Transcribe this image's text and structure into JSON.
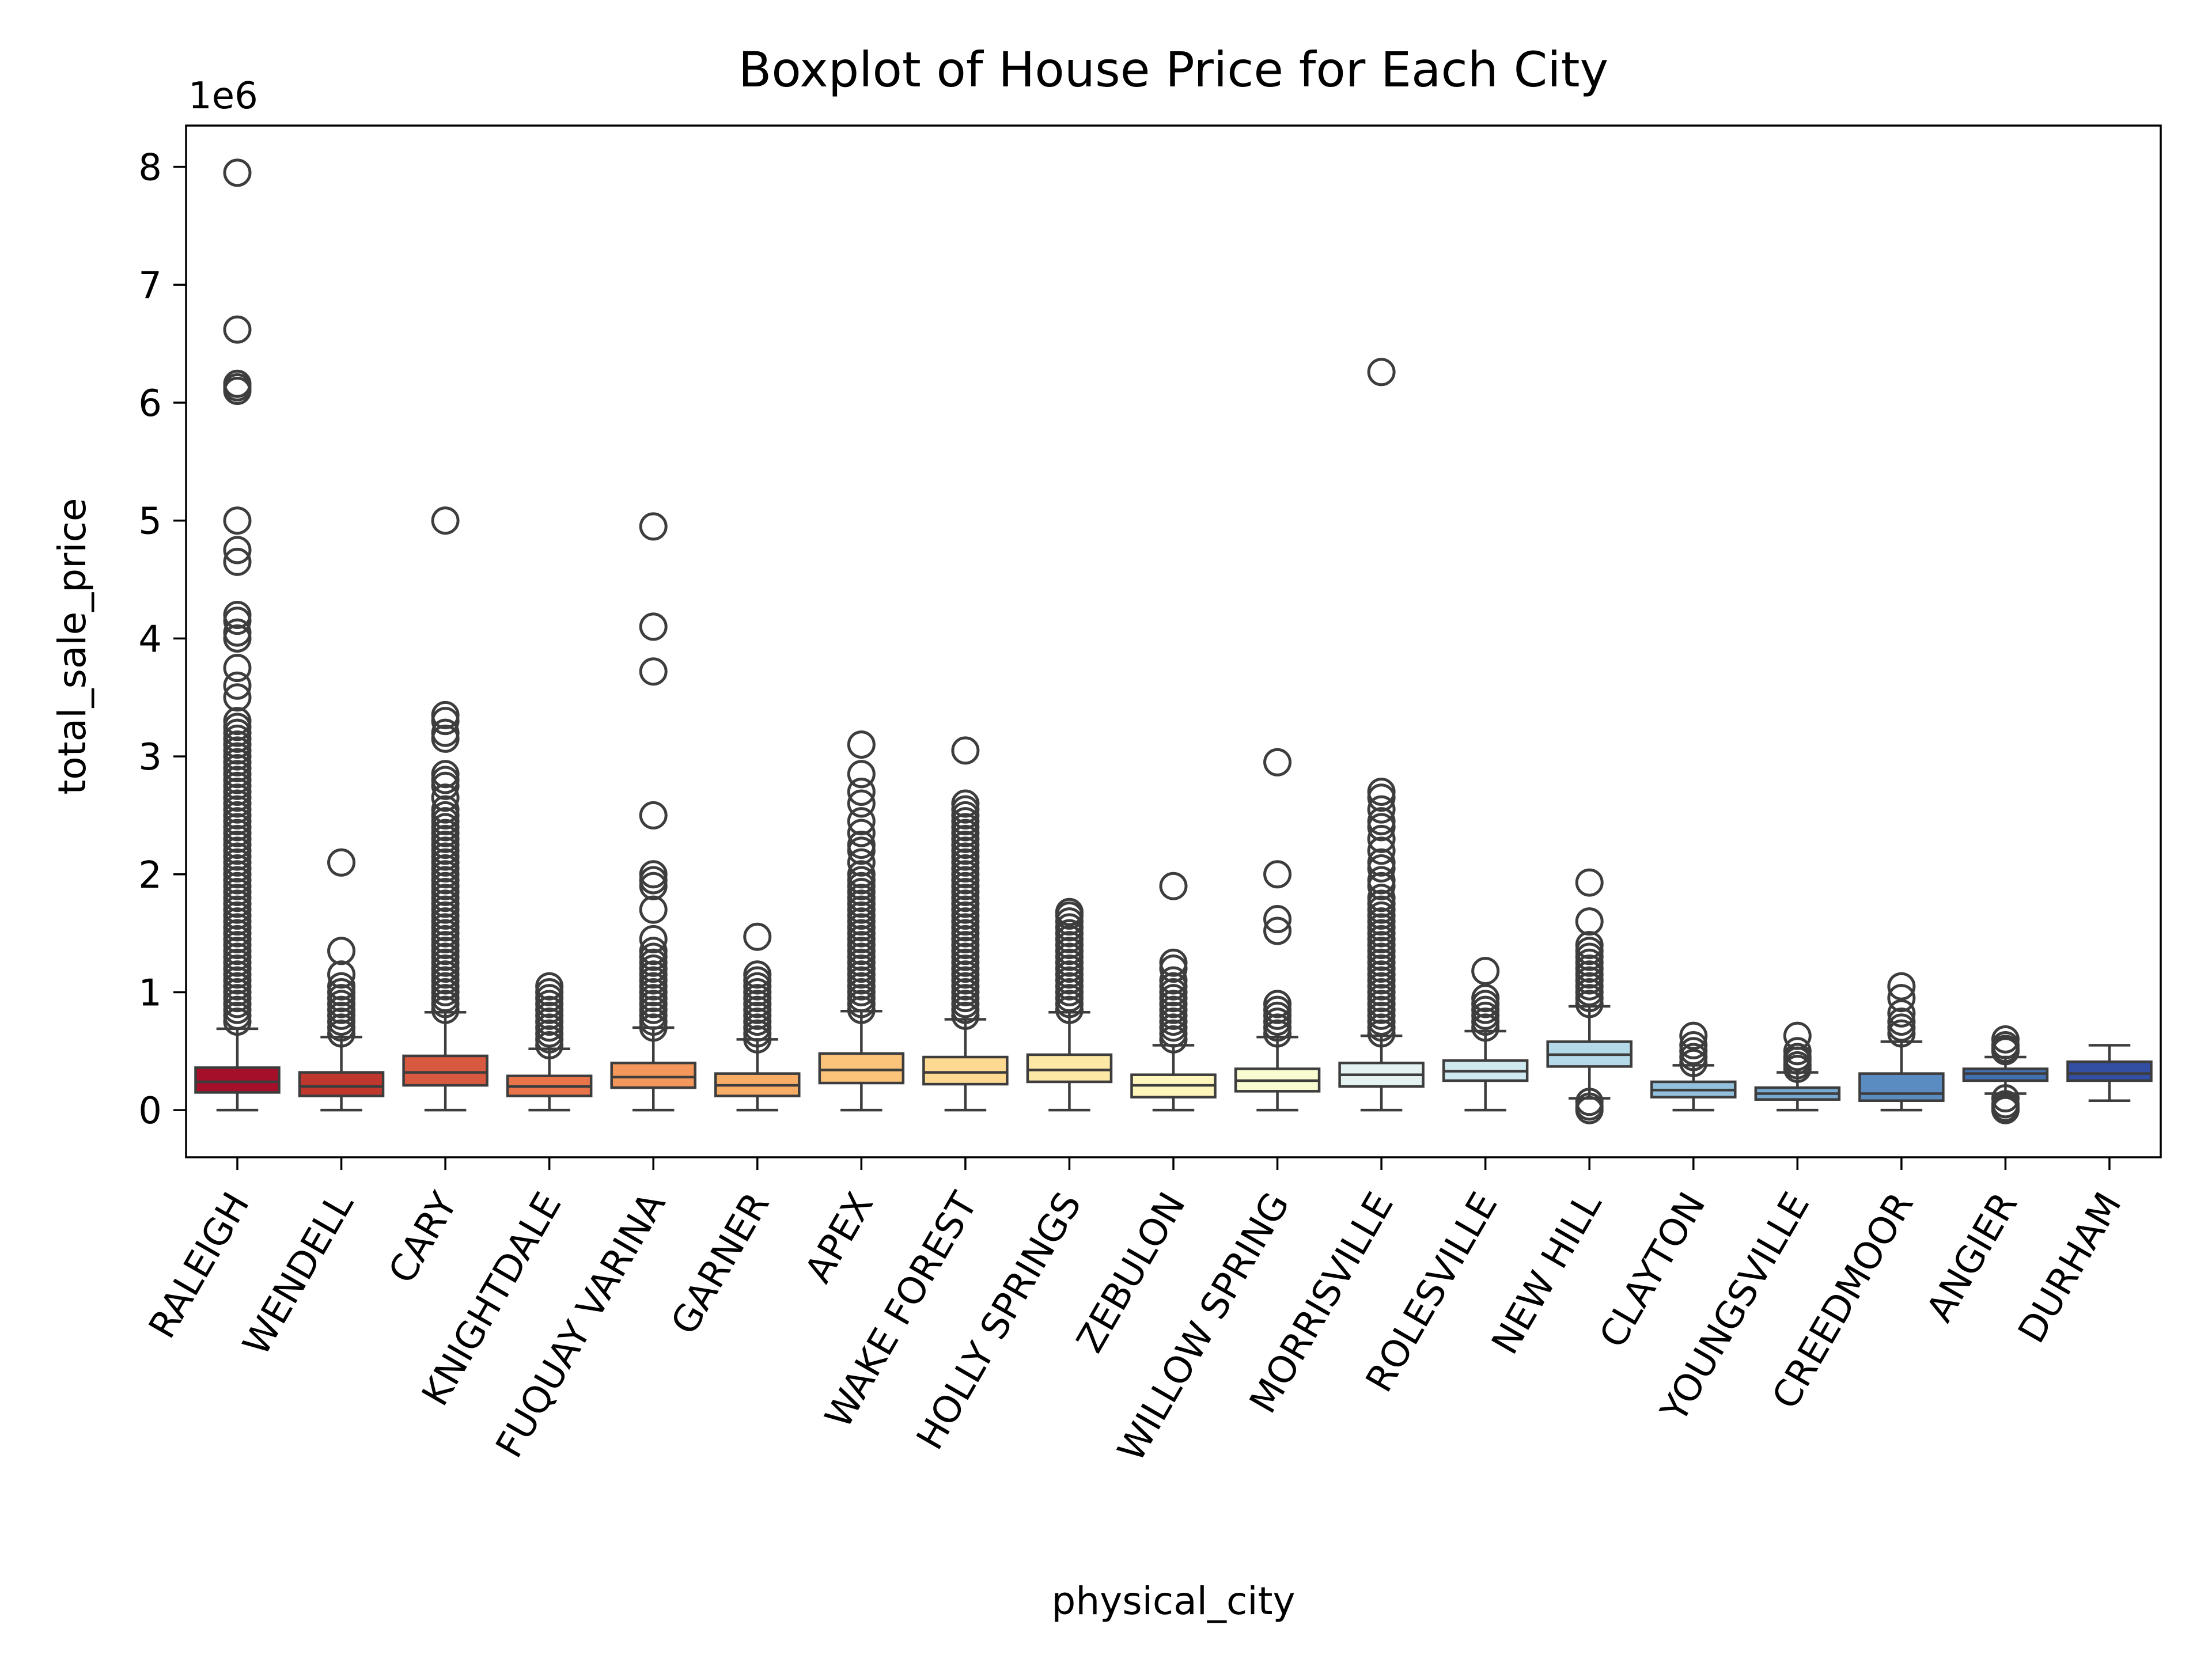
{
  "chart_data": {
    "type": "box",
    "title": "Boxplot of House Price for Each City",
    "xlabel": "physical_city",
    "ylabel": "total_sale_price",
    "y_offset_label": "1e6",
    "y_scale_factor": 1000000,
    "ylim": [
      -0.4,
      8.35
    ],
    "yticks": [
      0,
      1,
      2,
      3,
      4,
      5,
      6,
      7,
      8
    ],
    "grid": false,
    "legend": "none",
    "categories": [
      "RALEIGH",
      "WENDELL",
      "CARY",
      "KNIGHTDALE",
      "FUQUAY VARINA",
      "GARNER",
      "APEX",
      "WAKE FOREST",
      "HOLLY SPRINGS",
      "ZEBULON",
      "WILLOW SPRING",
      "MORRISVILLE",
      "ROLESVILLE",
      "NEW HILL",
      "CLAYTON",
      "YOUNGSVILLE",
      "CREEDMOOR",
      "ANGIER",
      "DURHAM"
    ],
    "colors": [
      "#a50f2a",
      "#c0372e",
      "#d95840",
      "#e9744a",
      "#f4975b",
      "#f8ad67",
      "#fcc47a",
      "#fdd992",
      "#fee8a5",
      "#fff6bc",
      "#f9fbd0",
      "#e4f3f1",
      "#cfe9f0",
      "#b4daea",
      "#93c1dd",
      "#76a8d0",
      "#5a8cc1",
      "#4170b0",
      "#334fa4"
    ],
    "series": [
      {
        "name": "RALEIGH",
        "whisker_low": 0.0,
        "q1": 0.15,
        "median": 0.24,
        "q3": 0.36,
        "whisker_high": 0.69,
        "outliers": [
          7.95,
          6.62,
          6.16,
          6.13,
          6.1,
          5.0,
          4.75,
          4.65,
          4.2,
          4.15,
          4.05,
          4.0,
          3.75,
          3.6,
          3.5,
          3.3,
          3.25,
          3.2,
          3.15,
          3.1,
          3.05,
          3.0,
          2.95,
          2.9,
          2.85,
          2.8,
          2.75,
          2.7,
          2.65,
          2.6,
          2.55,
          2.5,
          2.45,
          2.4,
          2.35,
          2.3,
          2.25,
          2.2,
          2.15,
          2.1,
          2.05,
          2.0,
          1.95,
          1.9,
          1.85,
          1.8,
          1.75,
          1.7,
          1.65,
          1.6,
          1.55,
          1.5,
          1.45,
          1.4,
          1.35,
          1.3,
          1.25,
          1.2,
          1.15,
          1.1,
          1.05,
          1.0,
          0.95,
          0.9,
          0.85,
          0.8,
          0.75
        ]
      },
      {
        "name": "WENDELL",
        "whisker_low": 0.0,
        "q1": 0.12,
        "median": 0.2,
        "q3": 0.32,
        "whisker_high": 0.62,
        "outliers": [
          2.1,
          1.35,
          1.15,
          1.05,
          1.0,
          0.95,
          0.9,
          0.85,
          0.8,
          0.75,
          0.7,
          0.65
        ]
      },
      {
        "name": "CARY",
        "whisker_low": 0.0,
        "q1": 0.21,
        "median": 0.32,
        "q3": 0.46,
        "whisker_high": 0.83,
        "outliers": [
          5.0,
          3.35,
          3.3,
          3.2,
          3.15,
          2.85,
          2.8,
          2.75,
          2.65,
          2.55,
          2.5,
          2.45,
          2.4,
          2.35,
          2.3,
          2.25,
          2.2,
          2.15,
          2.1,
          2.05,
          2.0,
          1.95,
          1.9,
          1.85,
          1.8,
          1.75,
          1.7,
          1.65,
          1.6,
          1.55,
          1.5,
          1.45,
          1.4,
          1.35,
          1.3,
          1.25,
          1.2,
          1.15,
          1.1,
          1.05,
          1.0,
          0.95,
          0.9,
          0.85
        ]
      },
      {
        "name": "KNIGHTDALE",
        "whisker_low": 0.0,
        "q1": 0.12,
        "median": 0.2,
        "q3": 0.29,
        "whisker_high": 0.52,
        "outliers": [
          1.05,
          1.0,
          0.95,
          0.9,
          0.85,
          0.8,
          0.75,
          0.7,
          0.65,
          0.6,
          0.55
        ]
      },
      {
        "name": "FUQUAY VARINA",
        "whisker_low": 0.0,
        "q1": 0.19,
        "median": 0.28,
        "q3": 0.4,
        "whisker_high": 0.7,
        "outliers": [
          4.95,
          4.1,
          3.72,
          2.5,
          2.0,
          1.95,
          1.9,
          1.7,
          1.45,
          1.35,
          1.3,
          1.25,
          1.2,
          1.15,
          1.1,
          1.05,
          1.0,
          0.95,
          0.9,
          0.85,
          0.8,
          0.75,
          0.7
        ]
      },
      {
        "name": "GARNER",
        "whisker_low": 0.0,
        "q1": 0.12,
        "median": 0.21,
        "q3": 0.31,
        "whisker_high": 0.6,
        "outliers": [
          1.47,
          1.15,
          1.1,
          1.05,
          1.0,
          0.95,
          0.9,
          0.85,
          0.8,
          0.75,
          0.7,
          0.65,
          0.6
        ]
      },
      {
        "name": "APEX",
        "whisker_low": 0.0,
        "q1": 0.23,
        "median": 0.34,
        "q3": 0.48,
        "whisker_high": 0.84,
        "outliers": [
          3.1,
          2.85,
          2.7,
          2.6,
          2.45,
          2.35,
          2.25,
          2.2,
          2.1,
          2.0,
          1.95,
          1.9,
          1.85,
          1.8,
          1.75,
          1.7,
          1.65,
          1.6,
          1.55,
          1.5,
          1.45,
          1.4,
          1.35,
          1.3,
          1.25,
          1.2,
          1.15,
          1.1,
          1.05,
          1.0,
          0.95,
          0.9,
          0.85
        ]
      },
      {
        "name": "WAKE FOREST",
        "whisker_low": 0.0,
        "q1": 0.22,
        "median": 0.32,
        "q3": 0.45,
        "whisker_high": 0.77,
        "outliers": [
          3.05,
          2.6,
          2.55,
          2.5,
          2.45,
          2.4,
          2.35,
          2.3,
          2.25,
          2.2,
          2.15,
          2.1,
          2.05,
          2.0,
          1.95,
          1.9,
          1.85,
          1.8,
          1.75,
          1.7,
          1.65,
          1.6,
          1.55,
          1.5,
          1.45,
          1.4,
          1.35,
          1.3,
          1.25,
          1.2,
          1.15,
          1.1,
          1.05,
          1.0,
          0.95,
          0.9,
          0.85,
          0.8
        ]
      },
      {
        "name": "HOLLY SPRINGS",
        "whisker_low": 0.0,
        "q1": 0.24,
        "median": 0.34,
        "q3": 0.47,
        "whisker_high": 0.83,
        "outliers": [
          1.68,
          1.65,
          1.6,
          1.55,
          1.5,
          1.45,
          1.4,
          1.35,
          1.3,
          1.25,
          1.2,
          1.15,
          1.1,
          1.05,
          1.0,
          0.95,
          0.9,
          0.85
        ]
      },
      {
        "name": "ZEBULON",
        "whisker_low": 0.0,
        "q1": 0.11,
        "median": 0.21,
        "q3": 0.3,
        "whisker_high": 0.55,
        "outliers": [
          1.9,
          1.25,
          1.2,
          1.1,
          1.05,
          1.0,
          0.95,
          0.9,
          0.85,
          0.8,
          0.75,
          0.7,
          0.65,
          0.6
        ]
      },
      {
        "name": "WILLOW SPRING",
        "whisker_low": 0.0,
        "q1": 0.16,
        "median": 0.25,
        "q3": 0.35,
        "whisker_high": 0.62,
        "outliers": [
          2.95,
          2.0,
          1.62,
          1.52,
          0.9,
          0.85,
          0.8,
          0.75,
          0.7,
          0.65
        ]
      },
      {
        "name": "MORRISVILLE",
        "whisker_low": 0.0,
        "q1": 0.2,
        "median": 0.3,
        "q3": 0.4,
        "whisker_high": 0.63,
        "outliers": [
          6.26,
          2.7,
          2.65,
          2.55,
          2.45,
          2.4,
          2.3,
          2.2,
          2.1,
          2.05,
          1.95,
          1.9,
          1.8,
          1.75,
          1.7,
          1.65,
          1.6,
          1.55,
          1.5,
          1.45,
          1.4,
          1.35,
          1.3,
          1.25,
          1.2,
          1.15,
          1.1,
          1.05,
          1.0,
          0.95,
          0.9,
          0.85,
          0.8,
          0.75,
          0.7,
          0.65
        ]
      },
      {
        "name": "ROLESVILLE",
        "whisker_low": 0.0,
        "q1": 0.25,
        "median": 0.33,
        "q3": 0.42,
        "whisker_high": 0.67,
        "outliers": [
          1.18,
          0.95,
          0.9,
          0.85,
          0.8,
          0.75,
          0.7
        ]
      },
      {
        "name": "NEW HILL",
        "whisker_low": 0.1,
        "q1": 0.37,
        "median": 0.47,
        "q3": 0.58,
        "whisker_high": 0.88,
        "outliers": [
          1.93,
          1.6,
          1.4,
          1.35,
          1.3,
          1.25,
          1.2,
          1.15,
          1.1,
          1.05,
          1.0,
          0.95,
          0.9,
          0.07,
          0.03,
          0.0
        ]
      },
      {
        "name": "CLAYTON",
        "whisker_low": 0.0,
        "q1": 0.11,
        "median": 0.17,
        "q3": 0.24,
        "whisker_high": 0.38,
        "outliers": [
          0.63,
          0.55,
          0.5,
          0.45,
          0.4
        ]
      },
      {
        "name": "YOUNGSVILLE",
        "whisker_low": 0.0,
        "q1": 0.09,
        "median": 0.14,
        "q3": 0.19,
        "whisker_high": 0.32,
        "outliers": [
          0.63,
          0.5,
          0.45,
          0.42,
          0.38,
          0.35
        ]
      },
      {
        "name": "CREEDMOOR",
        "whisker_low": 0.0,
        "q1": 0.08,
        "median": 0.14,
        "q3": 0.31,
        "whisker_high": 0.58,
        "outliers": [
          1.05,
          0.95,
          0.82,
          0.75,
          0.7,
          0.65
        ]
      },
      {
        "name": "ANGIER",
        "whisker_low": 0.14,
        "q1": 0.25,
        "median": 0.31,
        "q3": 0.35,
        "whisker_high": 0.45,
        "outliers": [
          0.6,
          0.55,
          0.52,
          0.5,
          0.1,
          0.05,
          0.02,
          0.0
        ]
      },
      {
        "name": "DURHAM",
        "whisker_low": 0.08,
        "q1": 0.25,
        "median": 0.31,
        "q3": 0.41,
        "whisker_high": 0.55,
        "outliers": []
      }
    ]
  }
}
